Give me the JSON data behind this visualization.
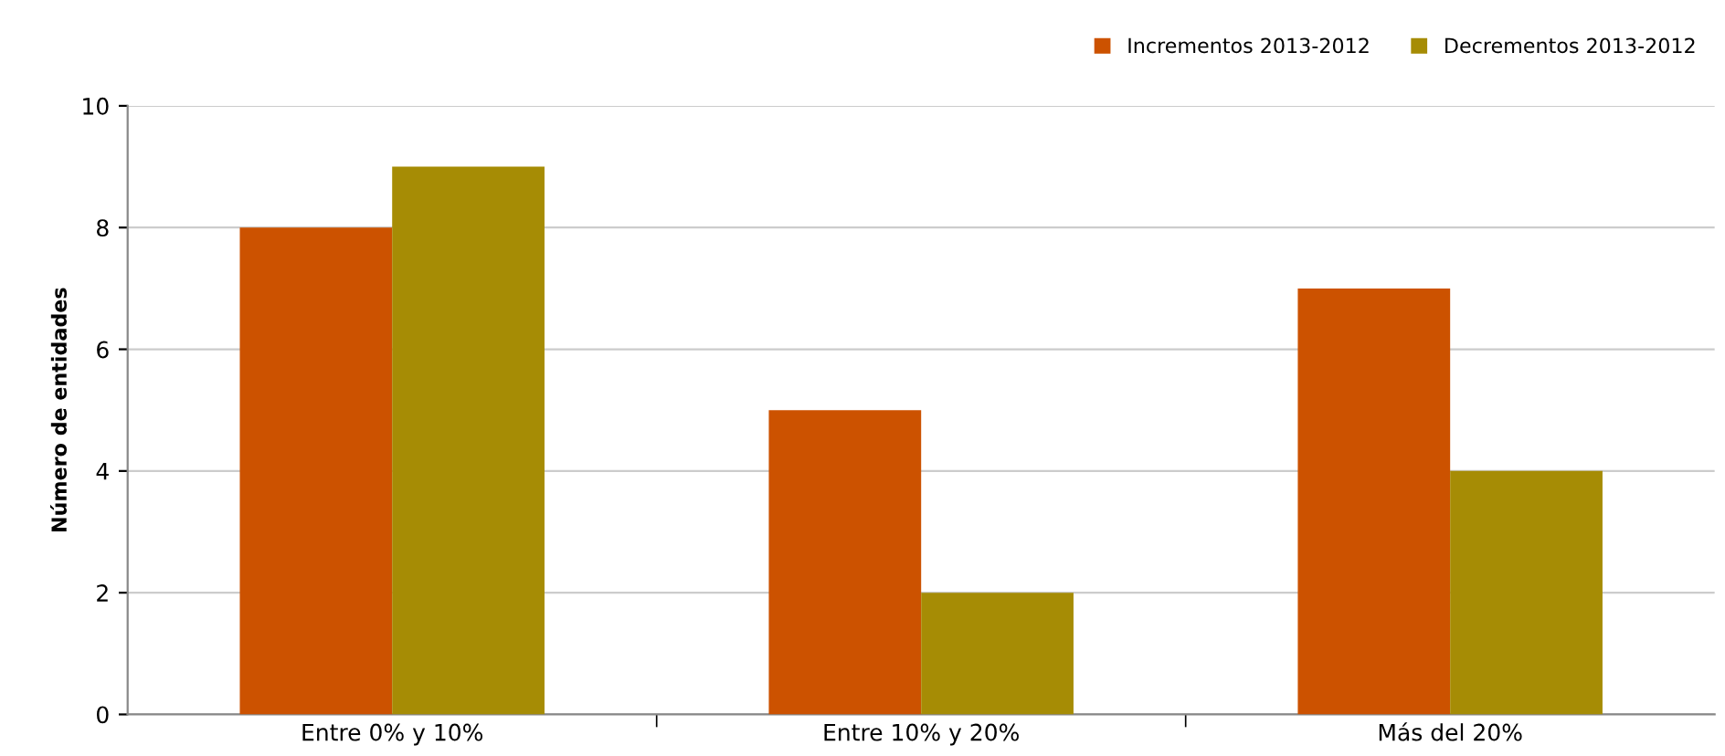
{
  "chart_data": {
    "type": "bar",
    "ylabel": "Número de entidades",
    "categories": [
      "Entre 0% y 10%",
      "Entre 10% y 20%",
      "Más del 20%"
    ],
    "series": [
      {
        "name": "Incrementos 2013-2012",
        "color": "#cc5200",
        "values": [
          8,
          5,
          7
        ]
      },
      {
        "name": "Decrementos 2013-2012",
        "color": "#a68c05",
        "values": [
          9,
          2,
          4
        ]
      }
    ],
    "ylim": [
      0,
      10
    ],
    "yticks": [
      0,
      2,
      4,
      6,
      8,
      10
    ],
    "grid": "y",
    "legend": "top right"
  }
}
